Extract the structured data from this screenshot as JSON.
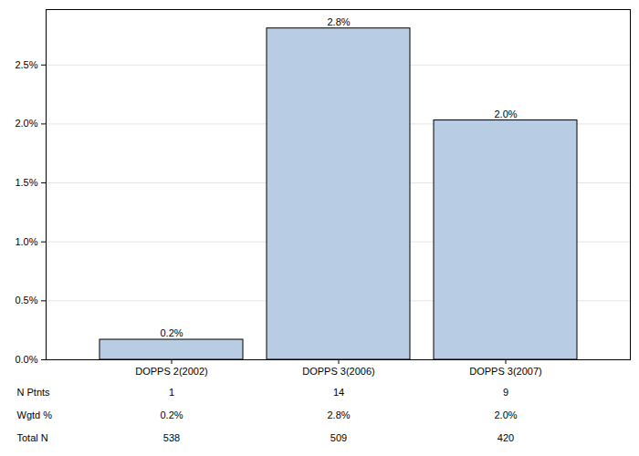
{
  "chart_data": {
    "type": "bar",
    "categories": [
      "DOPPS 2(2002)",
      "DOPPS 3(2006)",
      "DOPPS 3(2007)"
    ],
    "values": [
      0.17,
      2.81,
      2.03
    ],
    "value_labels": [
      "0.2%",
      "2.8%",
      "2.0%"
    ],
    "data_labels": true,
    "color": "#b8cce4",
    "ylim": [
      0,
      2.97
    ],
    "yticks": [
      {
        "value": 0,
        "label": "0.0%"
      },
      {
        "value": 0.5,
        "label": "0.5%"
      },
      {
        "value": 1,
        "label": "1.0%"
      },
      {
        "value": 1.5,
        "label": "1.5%"
      },
      {
        "value": 2,
        "label": "2.0%"
      },
      {
        "value": 2.5,
        "label": "2.5%"
      }
    ],
    "grid": true,
    "table": [
      {
        "label": "N Ptnts",
        "values": [
          1,
          14,
          9
        ]
      },
      {
        "label": "Wgtd %",
        "values": [
          "0.2%",
          "2.8%",
          "2.0%"
        ]
      },
      {
        "label": "Total N",
        "values": [
          538,
          509,
          420
        ]
      }
    ]
  }
}
